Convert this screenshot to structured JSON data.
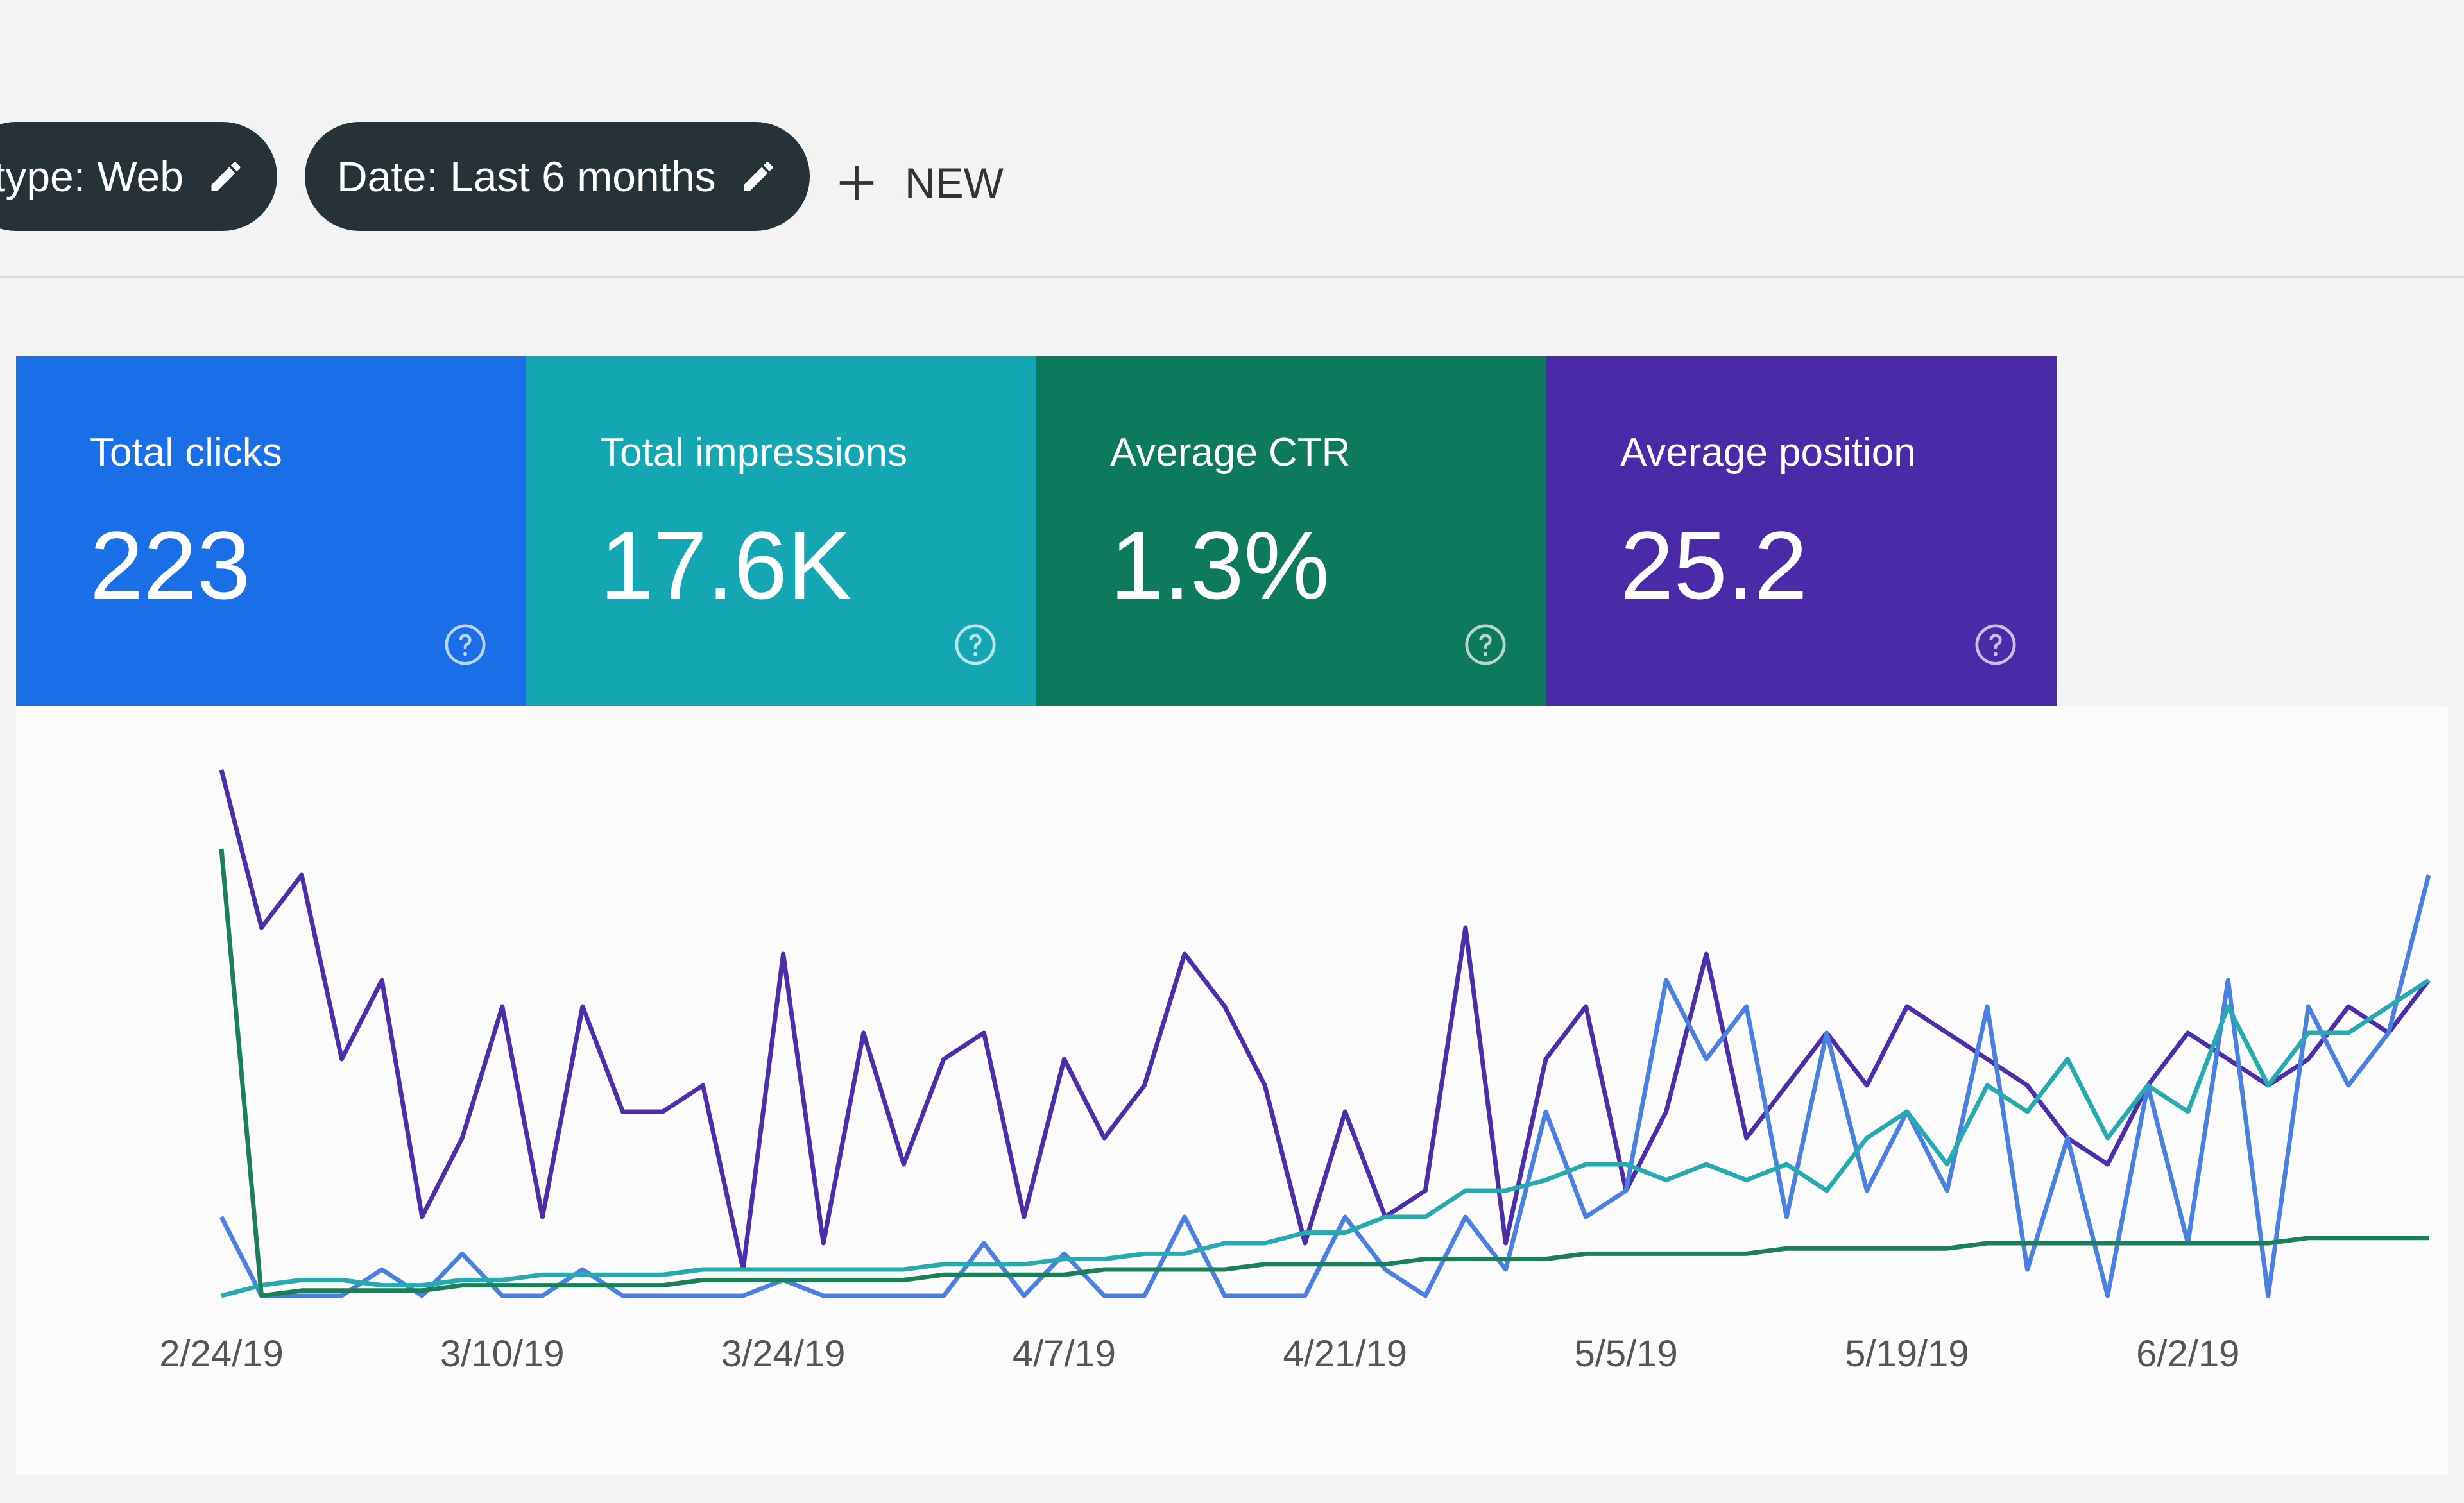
{
  "filters": [
    {
      "label": "type: Web"
    },
    {
      "label": "Date: Last 6 months"
    }
  ],
  "new_button": "NEW",
  "metrics": [
    {
      "label": "Total clicks",
      "value": "223",
      "color": "#1a6fe6"
    },
    {
      "label": "Total impressions",
      "value": "17.6K",
      "color": "#14a6b3"
    },
    {
      "label": "Average CTR",
      "value": "1.3%",
      "color": "#0e7a5d"
    },
    {
      "label": "Average position",
      "value": "25.2",
      "color": "#4a2aa6"
    }
  ],
  "chart_data": {
    "type": "line",
    "categories": [
      "2/24/19",
      null,
      null,
      null,
      null,
      null,
      null,
      "3/10/19",
      null,
      null,
      null,
      null,
      null,
      null,
      "3/24/19",
      null,
      null,
      null,
      null,
      null,
      null,
      "4/7/19",
      null,
      null,
      null,
      null,
      null,
      null,
      "4/21/19",
      null,
      null,
      null,
      null,
      null,
      null,
      "5/5/19",
      null,
      null,
      null,
      null,
      null,
      null,
      "5/19/19",
      null,
      null,
      null,
      null,
      null,
      null,
      "6/2/19",
      null,
      null,
      null,
      null,
      null,
      null
    ],
    "series": [
      {
        "color": "#4b2ea8",
        "values": [
          100,
          70,
          80,
          45,
          60,
          15,
          30,
          55,
          15,
          55,
          35,
          35,
          40,
          5,
          65,
          10,
          50,
          25,
          45,
          50,
          15,
          45,
          30,
          40,
          65,
          55,
          40,
          10,
          35,
          15,
          20,
          70,
          10,
          45,
          55,
          20,
          35,
          65,
          30,
          40,
          50,
          40,
          55,
          50,
          45,
          40,
          30,
          25,
          40,
          50,
          45,
          40,
          45,
          55,
          50,
          60
        ]
      },
      {
        "color": "#4a80e0",
        "values": [
          15,
          0,
          0,
          0,
          5,
          0,
          8,
          0,
          0,
          5,
          0,
          0,
          0,
          0,
          3,
          0,
          0,
          0,
          0,
          10,
          0,
          8,
          0,
          0,
          15,
          0,
          0,
          0,
          15,
          5,
          0,
          15,
          5,
          35,
          15,
          20,
          60,
          45,
          55,
          15,
          50,
          20,
          35,
          20,
          55,
          5,
          30,
          0,
          40,
          10,
          60,
          0,
          55,
          40,
          50,
          80
        ]
      },
      {
        "color": "#27a9b0",
        "values": [
          0,
          2,
          3,
          3,
          2,
          2,
          3,
          3,
          4,
          4,
          4,
          4,
          5,
          5,
          5,
          5,
          5,
          5,
          6,
          6,
          6,
          7,
          7,
          8,
          8,
          10,
          10,
          12,
          12,
          15,
          15,
          20,
          20,
          22,
          25,
          25,
          22,
          25,
          22,
          25,
          20,
          30,
          35,
          25,
          40,
          35,
          45,
          30,
          40,
          35,
          55,
          40,
          50,
          50,
          55,
          60
        ]
      },
      {
        "color": "#1b7f5a",
        "values": [
          85,
          0,
          1,
          1,
          1,
          1,
          2,
          2,
          2,
          2,
          2,
          2,
          3,
          3,
          3,
          3,
          3,
          3,
          4,
          4,
          4,
          4,
          5,
          5,
          5,
          5,
          6,
          6,
          6,
          6,
          7,
          7,
          7,
          7,
          8,
          8,
          8,
          8,
          8,
          9,
          9,
          9,
          9,
          9,
          10,
          10,
          10,
          10,
          10,
          10,
          10,
          10,
          11,
          11,
          11,
          11
        ]
      }
    ],
    "ylim": [
      0,
      100
    ]
  }
}
